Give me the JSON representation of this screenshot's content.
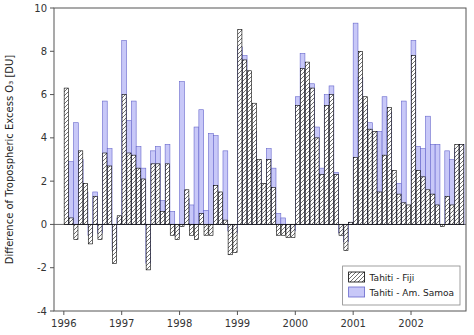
{
  "chart_data": {
    "type": "bar",
    "ylabel": "Difference of Tropospheric Excess O₃ [DU]",
    "x": [
      1996.041667,
      1996.125,
      1996.208333,
      1996.291667,
      1996.375,
      1996.458333,
      1996.541667,
      1996.625,
      1996.708333,
      1996.791667,
      1996.875,
      1996.958333,
      1997.041667,
      1997.125,
      1997.208333,
      1997.291667,
      1997.375,
      1997.458333,
      1997.541667,
      1997.625,
      1997.708333,
      1997.791667,
      1997.875,
      1997.958333,
      1998.041667,
      1998.125,
      1998.208333,
      1998.291667,
      1998.375,
      1998.458333,
      1998.541667,
      1998.625,
      1998.708333,
      1998.791667,
      1998.875,
      1998.958333,
      1999.041667,
      1999.125,
      1999.208333,
      1999.291667,
      1999.375,
      1999.458333,
      1999.541667,
      1999.625,
      1999.708333,
      1999.791667,
      1999.875,
      1999.958333,
      2000.041667,
      2000.125,
      2000.208333,
      2000.291667,
      2000.375,
      2000.458333,
      2000.541667,
      2000.625,
      2000.708333,
      2000.791667,
      2000.875,
      2000.958333,
      2001.041667,
      2001.125,
      2001.208333,
      2001.291667,
      2001.375,
      2001.458333,
      2001.541667,
      2001.625,
      2001.708333,
      2001.791667,
      2001.875,
      2001.958333,
      2002.041667,
      2002.125,
      2002.208333,
      2002.291667,
      2002.375,
      2002.458333,
      2002.541667,
      2002.625,
      2002.708333,
      2002.791667,
      2002.875
    ],
    "series": [
      {
        "name": "Tahiti - Fiji",
        "color": "white",
        "values": [
          6.3,
          0.3,
          -0.7,
          3.4,
          1.9,
          -0.9,
          1.3,
          -0.7,
          3.3,
          2.7,
          -1.8,
          0.4,
          6.0,
          3.3,
          3.2,
          2.6,
          2.1,
          -2.1,
          2.8,
          2.8,
          0.6,
          2.8,
          -0.5,
          -0.7,
          -0.1,
          1.6,
          -0.5,
          -0.7,
          0.5,
          -0.5,
          -0.5,
          1.8,
          1.5,
          0.2,
          -1.4,
          -1.3,
          9.0,
          7.6,
          7.1,
          5.6,
          3.0,
          1.9,
          3.0,
          1.7,
          -0.5,
          -0.5,
          -0.6,
          -0.6,
          5.5,
          7.2,
          7.5,
          6.3,
          4.0,
          2.3,
          5.5,
          6.0,
          2.3,
          -0.5,
          -1.2,
          0.1,
          3.1,
          8.0,
          5.9,
          4.4,
          4.3,
          1.5,
          3.2,
          5.4,
          2.5,
          1.4,
          1.0,
          0.9,
          7.8,
          2.5,
          2.2,
          1.6,
          1.4,
          0.9,
          -0.1,
          1.3,
          0.9,
          3.7,
          3.7
        ]
      },
      {
        "name": "Tahiti - Am. Samoa",
        "color": "#c8c8f8",
        "values": [
          0.0,
          2.9,
          4.7,
          3.0,
          1.5,
          -0.5,
          1.5,
          -0.4,
          5.7,
          3.5,
          -1.2,
          0.3,
          8.5,
          4.8,
          5.7,
          3.6,
          2.6,
          -1.8,
          3.4,
          3.6,
          1.1,
          3.7,
          0.6,
          -0.5,
          6.6,
          1.2,
          0.9,
          4.5,
          5.3,
          0.65,
          4.2,
          4.1,
          1.0,
          3.4,
          -0.3,
          -0.4,
          8.2,
          7.8,
          3.1,
          4.3,
          2.9,
          1.65,
          3.5,
          2.6,
          0.5,
          0.3,
          -0.3,
          -0.3,
          5.9,
          7.9,
          6.5,
          6.5,
          4.5,
          2.6,
          6.0,
          6.4,
          2.4,
          -0.4,
          -0.8,
          0.1,
          9.3,
          6.8,
          5.5,
          4.7,
          4.2,
          4.3,
          5.9,
          5.2,
          2.0,
          1.9,
          5.7,
          0.0,
          8.5,
          3.6,
          3.5,
          5.0,
          3.7,
          3.7,
          0.0,
          3.4,
          3.0,
          3.5,
          3.7
        ]
      }
    ],
    "xlim": [
      1995.83,
      2002.95
    ],
    "xticks": [
      1996,
      1997,
      1998,
      1999,
      2000,
      2001,
      2002
    ],
    "ylim": [
      -4,
      10
    ],
    "yticks": [
      -4,
      -2,
      0,
      2,
      4,
      6,
      8,
      10
    ],
    "grid": false,
    "legend": "lower right"
  }
}
